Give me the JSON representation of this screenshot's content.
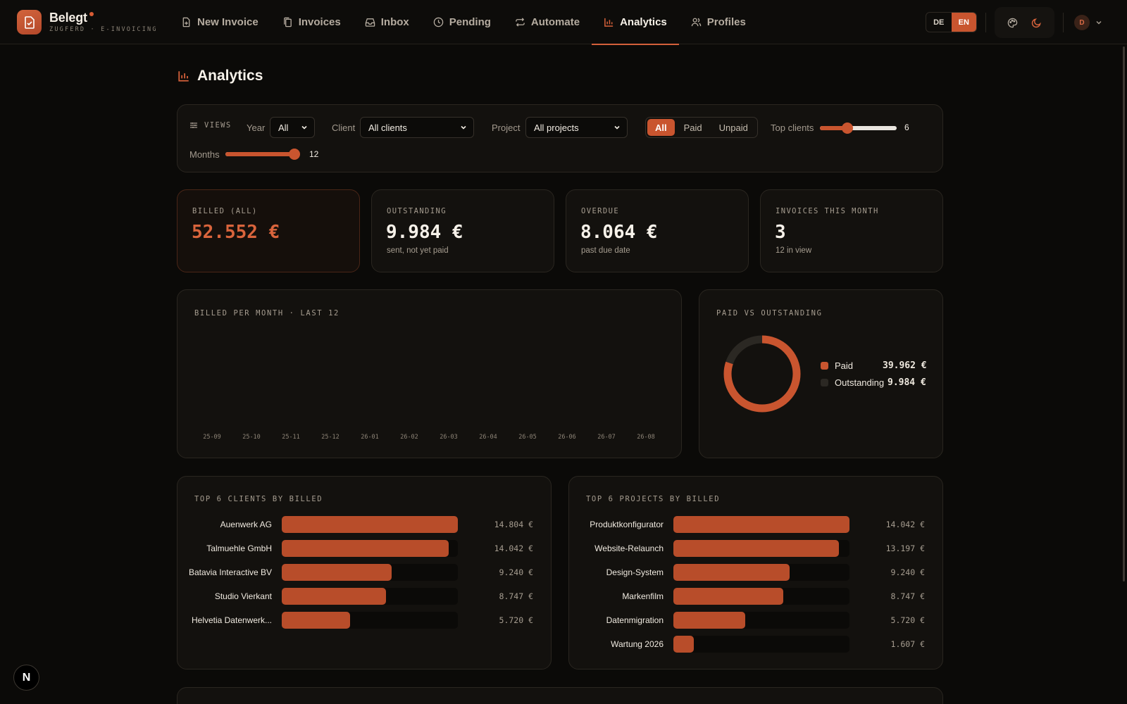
{
  "app": {
    "name": "Belegt",
    "subtitle": "ZUGFERD · E-INVOICING"
  },
  "nav": [
    {
      "label": "New Invoice",
      "icon": "file-plus-icon",
      "active": false
    },
    {
      "label": "Invoices",
      "icon": "files-icon",
      "active": false
    },
    {
      "label": "Inbox",
      "icon": "inbox-icon",
      "active": false
    },
    {
      "label": "Pending",
      "icon": "clock-icon",
      "active": false
    },
    {
      "label": "Automate",
      "icon": "repeat-icon",
      "active": false
    },
    {
      "label": "Analytics",
      "icon": "bar-chart-icon",
      "active": true
    },
    {
      "label": "Profiles",
      "icon": "users-icon",
      "active": false
    }
  ],
  "header": {
    "lang_de": "DE",
    "lang_en": "EN",
    "lang_active": "EN",
    "user_initial": "D"
  },
  "page": {
    "title": "Analytics"
  },
  "filters": {
    "views_label": "VIEWS",
    "year_label": "Year",
    "year_value": "All",
    "client_label": "Client",
    "client_value": "All clients",
    "project_label": "Project",
    "project_value": "All projects",
    "status_options": [
      "All",
      "Paid",
      "Unpaid"
    ],
    "status_selected": "All",
    "top_clients_label": "Top clients",
    "top_clients_value": "6",
    "top_clients_fraction": 0.36,
    "months_label": "Months",
    "months_value": "12",
    "months_fraction": 1.0
  },
  "kpis": [
    {
      "label": "BILLED (ALL)",
      "value": "52.552 €",
      "sub": ""
    },
    {
      "label": "OUTSTANDING",
      "value": "9.984 €",
      "sub": "sent, not yet paid"
    },
    {
      "label": "OVERDUE",
      "value": "8.064 €",
      "sub": "past due date"
    },
    {
      "label": "INVOICES THIS MONTH",
      "value": "3",
      "sub": "12 in view"
    }
  ],
  "billed_chart": {
    "title": "BILLED PER MONTH · LAST 12",
    "months": [
      "25-09",
      "25-10",
      "25-11",
      "25-12",
      "26-01",
      "26-02",
      "26-03",
      "26-04",
      "26-05",
      "26-06",
      "26-07",
      "26-08"
    ]
  },
  "paid_vs_outstanding": {
    "title": "PAID VS OUTSTANDING",
    "items": [
      {
        "label": "Paid",
        "value_label": "39.962 €",
        "value": 39962,
        "color": "#c9552f"
      },
      {
        "label": "Outstanding",
        "value_label": "9.984 €",
        "value": 9984,
        "color": "#2b2823"
      }
    ]
  },
  "top_clients": {
    "title": "TOP 6 CLIENTS BY BILLED",
    "rows": [
      {
        "name": "Auenwerk AG",
        "value_label": "14.804 €",
        "value": 14804
      },
      {
        "name": "Talmuehle GmbH",
        "value_label": "14.042 €",
        "value": 14042
      },
      {
        "name": "Batavia Interactive BV",
        "value_label": "9.240 €",
        "value": 9240
      },
      {
        "name": "Studio Vierkant",
        "value_label": "8.747 €",
        "value": 8747
      },
      {
        "name": "Helvetia Datenwerk...",
        "value_label": "5.720 €",
        "value": 5720
      }
    ]
  },
  "top_projects": {
    "title": "TOP 6 PROJECTS BY BILLED",
    "rows": [
      {
        "name": "Produktkonfigurator",
        "value_label": "14.042 €",
        "value": 14042
      },
      {
        "name": "Website-Relaunch",
        "value_label": "13.197 €",
        "value": 13197
      },
      {
        "name": "Design-System",
        "value_label": "9.240 €",
        "value": 9240
      },
      {
        "name": "Markenfilm",
        "value_label": "8.747 €",
        "value": 8747
      },
      {
        "name": "Datenmigration",
        "value_label": "5.720 €",
        "value": 5720
      },
      {
        "name": "Wartung 2026",
        "value_label": "1.607 €",
        "value": 1607
      }
    ]
  },
  "dev_badge": {
    "letter": "N"
  }
}
